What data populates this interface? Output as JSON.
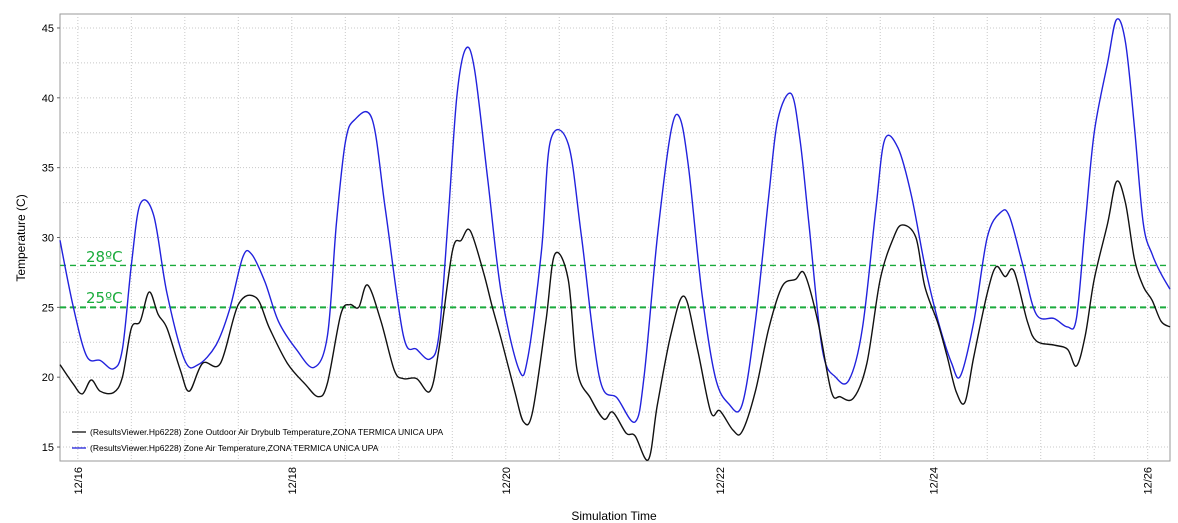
{
  "chart_data": {
    "type": "line",
    "xlabel": "Simulation Time",
    "ylabel": "Temperature (C)",
    "xlim": [
      "12/15 20:00",
      "12/26 05:00"
    ],
    "ylim": [
      14,
      46
    ],
    "x_ticks": [
      "12/16",
      "12/18",
      "12/20",
      "12/22",
      "12/24",
      "12/26"
    ],
    "y_ticks": [
      15,
      20,
      25,
      30,
      35,
      40,
      45
    ],
    "grid": true,
    "legend_position": "bottom-left",
    "thresholds": [
      {
        "label": "28ºC",
        "value": 28,
        "color": "#1aab3c"
      },
      {
        "label": "25ºC",
        "value": 25,
        "color": "#1aab3c"
      }
    ],
    "series": [
      {
        "name": "(ResultsViewer.Hp6228) Zone Air Temperature,ZONA TERMICA UNICA UPA",
        "color": "#2222dd",
        "points": [
          [
            "12/15 20:00",
            29.8
          ],
          [
            "12/15 23:00",
            25.0
          ],
          [
            "12/16 02:00",
            21.5
          ],
          [
            "12/16 05:00",
            21.2
          ],
          [
            "12/16 08:00",
            20.6
          ],
          [
            "12/16 10:00",
            22.0
          ],
          [
            "12/16 12:00",
            28.0
          ],
          [
            "12/16 14:00",
            32.4
          ],
          [
            "12/16 17:00",
            31.6
          ],
          [
            "12/16 20:00",
            26.0
          ],
          [
            "12/17 00:00",
            21.2
          ],
          [
            "12/17 03:00",
            20.9
          ],
          [
            "12/17 07:00",
            22.3
          ],
          [
            "12/17 10:00",
            24.8
          ],
          [
            "12/17 13:00",
            28.6
          ],
          [
            "12/17 15:00",
            28.8
          ],
          [
            "12/17 18:00",
            26.8
          ],
          [
            "12/17 21:00",
            24.0
          ],
          [
            "12/18 01:00",
            22.0
          ],
          [
            "12/18 05:00",
            20.7
          ],
          [
            "12/18 08:00",
            23.0
          ],
          [
            "12/18 10:00",
            31.0
          ],
          [
            "12/18 12:00",
            36.8
          ],
          [
            "12/18 14:00",
            38.4
          ],
          [
            "12/18 18:00",
            38.5
          ],
          [
            "12/18 21:00",
            32.0
          ],
          [
            "12/19 01:00",
            23.0
          ],
          [
            "12/19 04:00",
            22.0
          ],
          [
            "12/19 07:00",
            21.3
          ],
          [
            "12/19 09:00",
            23.0
          ],
          [
            "12/19 11:00",
            31.0
          ],
          [
            "12/19 13:00",
            40.0
          ],
          [
            "12/19 15:00",
            43.5
          ],
          [
            "12/19 17:00",
            42.0
          ],
          [
            "12/19 20:00",
            34.0
          ],
          [
            "12/19 23:00",
            26.0
          ],
          [
            "12/20 03:00",
            20.5
          ],
          [
            "12/20 05:00",
            21.5
          ],
          [
            "12/20 08:00",
            29.0
          ],
          [
            "12/20 10:00",
            36.9
          ],
          [
            "12/20 14:00",
            36.7
          ],
          [
            "12/20 17:00",
            30.0
          ],
          [
            "12/20 21:00",
            20.0
          ],
          [
            "12/21 01:00",
            18.5
          ],
          [
            "12/21 05:00",
            16.8
          ],
          [
            "12/21 07:00",
            20.0
          ],
          [
            "12/21 10:00",
            30.0
          ],
          [
            "12/21 13:00",
            37.5
          ],
          [
            "12/21 15:00",
            38.6
          ],
          [
            "12/21 17:00",
            35.0
          ],
          [
            "12/21 20:00",
            26.0
          ],
          [
            "12/21 23:00",
            20.0
          ],
          [
            "12/22 02:00",
            18.1
          ],
          [
            "12/22 05:00",
            18.0
          ],
          [
            "12/22 08:00",
            24.0
          ],
          [
            "12/22 11:00",
            33.0
          ],
          [
            "12/22 13:00",
            38.4
          ],
          [
            "12/22 16:00",
            40.3
          ],
          [
            "12/22 18:00",
            37.0
          ],
          [
            "12/22 20:00",
            31.0
          ],
          [
            "12/22 23:00",
            22.0
          ],
          [
            "12/23 02:00",
            20.0
          ],
          [
            "12/23 05:00",
            19.8
          ],
          [
            "12/23 08:00",
            23.5
          ],
          [
            "12/23 11:00",
            32.0
          ],
          [
            "12/23 13:00",
            37.0
          ],
          [
            "12/23 16:00",
            36.4
          ],
          [
            "12/23 19:00",
            33.0
          ],
          [
            "12/23 22:00",
            28.0
          ],
          [
            "12/24 01:00",
            24.0
          ],
          [
            "12/24 04:00",
            21.0
          ],
          [
            "12/24 06:00",
            20.1
          ],
          [
            "12/24 09:00",
            24.0
          ],
          [
            "12/24 12:00",
            30.0
          ],
          [
            "12/24 15:00",
            31.8
          ],
          [
            "12/24 17:00",
            31.5
          ],
          [
            "12/24 20:00",
            28.0
          ],
          [
            "12/24 23:00",
            24.5
          ],
          [
            "12/25 03:00",
            24.2
          ],
          [
            "12/25 06:00",
            23.6
          ],
          [
            "12/25 08:00",
            24.2
          ],
          [
            "12/25 10:00",
            31.0
          ],
          [
            "12/25 12:00",
            37.5
          ],
          [
            "12/25 15:00",
            42.5
          ],
          [
            "12/25 17:00",
            45.6
          ],
          [
            "12/25 19:00",
            44.0
          ],
          [
            "12/25 21:00",
            38.0
          ],
          [
            "12/25 23:00",
            31.0
          ],
          [
            "12/26 01:00",
            28.8
          ],
          [
            "12/26 03:00",
            27.4
          ],
          [
            "12/26 05:00",
            26.3
          ]
        ]
      },
      {
        "name": "(ResultsViewer.Hp6228) Zone Outdoor Air Drybulb Temperature,ZONA TERMICA UNICA UPA",
        "color": "#111111",
        "points": [
          [
            "12/15 20:00",
            20.9
          ],
          [
            "12/15 23:00",
            19.5
          ],
          [
            "12/16 01:00",
            18.8
          ],
          [
            "12/16 03:00",
            19.8
          ],
          [
            "12/16 05:00",
            19.0
          ],
          [
            "12/16 08:00",
            18.9
          ],
          [
            "12/16 10:00",
            20.0
          ],
          [
            "12/16 12:00",
            23.5
          ],
          [
            "12/16 14:00",
            24.0
          ],
          [
            "12/16 16:00",
            26.1
          ],
          [
            "12/16 18:00",
            24.5
          ],
          [
            "12/16 20:00",
            23.5
          ],
          [
            "12/16 23:00",
            20.5
          ],
          [
            "12/17 01:00",
            19.0
          ],
          [
            "12/17 04:00",
            21.0
          ],
          [
            "12/17 08:00",
            21.0
          ],
          [
            "12/17 12:00",
            25.2
          ],
          [
            "12/17 16:00",
            25.7
          ],
          [
            "12/17 19:00",
            23.5
          ],
          [
            "12/17 23:00",
            21.0
          ],
          [
            "12/18 03:00",
            19.5
          ],
          [
            "12/18 06:00",
            18.6
          ],
          [
            "12/18 08:00",
            19.6
          ],
          [
            "12/18 11:00",
            24.5
          ],
          [
            "12/18 13:00",
            25.2
          ],
          [
            "12/18 15:00",
            25.0
          ],
          [
            "12/18 17:00",
            26.6
          ],
          [
            "12/18 20:00",
            24.0
          ],
          [
            "12/18 23:00",
            20.5
          ],
          [
            "12/19 01:00",
            19.9
          ],
          [
            "12/19 04:00",
            19.9
          ],
          [
            "12/19 07:00",
            19.0
          ],
          [
            "12/19 09:00",
            22.0
          ],
          [
            "12/19 12:00",
            29.0
          ],
          [
            "12/19 14:00",
            29.8
          ],
          [
            "12/19 16:00",
            30.5
          ],
          [
            "12/19 19:00",
            27.5
          ],
          [
            "12/19 21:00",
            25.0
          ],
          [
            "12/19 23:00",
            22.7
          ],
          [
            "12/20 02:00",
            19.0
          ],
          [
            "12/20 04:00",
            16.8
          ],
          [
            "12/20 06:00",
            17.5
          ],
          [
            "12/20 09:00",
            24.0
          ],
          [
            "12/20 11:00",
            28.8
          ],
          [
            "12/20 14:00",
            27.0
          ],
          [
            "12/20 16:00",
            20.5
          ],
          [
            "12/20 19:00",
            18.5
          ],
          [
            "12/20 22:00",
            17.0
          ],
          [
            "12/21 00:00",
            17.5
          ],
          [
            "12/21 03:00",
            16.0
          ],
          [
            "12/21 05:00",
            15.8
          ],
          [
            "12/21 08:00",
            14.1
          ],
          [
            "12/21 10:00",
            18.0
          ],
          [
            "12/21 13:00",
            23.0
          ],
          [
            "12/21 16:00",
            25.8
          ],
          [
            "12/21 19:00",
            22.0
          ],
          [
            "12/21 22:00",
            17.5
          ],
          [
            "12/22 00:00",
            17.6
          ],
          [
            "12/22 03:00",
            16.2
          ],
          [
            "12/22 05:00",
            16.1
          ],
          [
            "12/22 08:00",
            19.0
          ],
          [
            "12/22 11:00",
            23.5
          ],
          [
            "12/22 14:00",
            26.5
          ],
          [
            "12/22 17:00",
            27.0
          ],
          [
            "12/22 19:00",
            27.4
          ],
          [
            "12/22 22:00",
            24.0
          ],
          [
            "12/23 01:00",
            19.0
          ],
          [
            "12/23 03:00",
            18.6
          ],
          [
            "12/23 06:00",
            18.5
          ],
          [
            "12/23 09:00",
            21.0
          ],
          [
            "12/23 12:00",
            27.0
          ],
          [
            "12/23 15:00",
            30.0
          ],
          [
            "12/23 17:00",
            30.9
          ],
          [
            "12/23 20:00",
            30.0
          ],
          [
            "12/23 22:00",
            26.5
          ],
          [
            "12/24 01:00",
            23.8
          ],
          [
            "12/24 03:00",
            21.5
          ],
          [
            "12/24 05:00",
            19.0
          ],
          [
            "12/24 07:00",
            18.2
          ],
          [
            "12/24 09:00",
            21.5
          ],
          [
            "12/24 12:00",
            26.0
          ],
          [
            "12/24 14:00",
            27.9
          ],
          [
            "12/24 16:00",
            27.2
          ],
          [
            "12/24 18:00",
            27.6
          ],
          [
            "12/24 21:00",
            24.0
          ],
          [
            "12/24 23:00",
            22.6
          ],
          [
            "12/25 03:00",
            22.3
          ],
          [
            "12/25 06:00",
            22.0
          ],
          [
            "12/25 08:00",
            20.8
          ],
          [
            "12/25 10:00",
            23.0
          ],
          [
            "12/25 12:00",
            27.0
          ],
          [
            "12/25 15:00",
            31.0
          ],
          [
            "12/25 17:00",
            34.0
          ],
          [
            "12/25 19:00",
            32.5
          ],
          [
            "12/25 21:00",
            28.5
          ],
          [
            "12/25 23:00",
            26.5
          ],
          [
            "12/26 01:00",
            25.5
          ],
          [
            "12/26 03:00",
            24.0
          ],
          [
            "12/26 05:00",
            23.6
          ]
        ]
      }
    ]
  }
}
